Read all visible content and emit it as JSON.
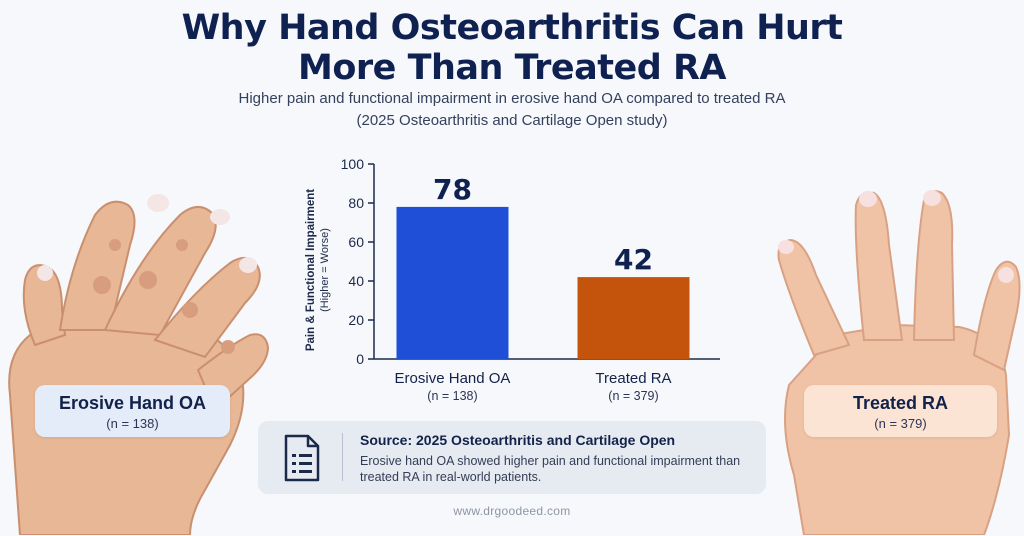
{
  "header": {
    "title_line1": "Why Hand Osteoarthritis Can Hurt",
    "title_line2": "More Than Treated RA",
    "subtitle_line1": "Higher pain and functional impairment in erosive hand OA compared to treated RA",
    "subtitle_line2": "(2025 Osteoarthritis and Cartilage Open study)"
  },
  "colors": {
    "oa_bar": "#1f4fd6",
    "ra_bar": "#c4530c",
    "title": "#0f2150",
    "oa_box": "#e3ecf8",
    "ra_box": "#fbe4d4"
  },
  "chart_data": {
    "type": "bar",
    "categories": [
      "Erosive Hand OA",
      "Treated RA"
    ],
    "category_notes": [
      "(n = 138)",
      "(n = 379)"
    ],
    "values": [
      78,
      42
    ],
    "value_labels": [
      "78",
      "42"
    ],
    "ylabel_line1": "Pain & Functional Impairment",
    "ylabel_line2": "(Higher = Worse)",
    "ylim": [
      0,
      100
    ],
    "yticks": [
      0,
      20,
      40,
      60,
      80,
      100
    ],
    "grid": false,
    "legend": "none"
  },
  "groups": {
    "left": {
      "label": "Erosive Hand OA",
      "n": "(n = 138)",
      "image_icon": "arthritic-hand-icon"
    },
    "right": {
      "label": "Treated RA",
      "n": "(n = 379)",
      "image_icon": "healthy-hand-icon"
    }
  },
  "source": {
    "icon": "document-icon",
    "title": "Source: 2025 Osteoarthritis and Cartilage Open",
    "body": "Erosive hand OA showed higher pain and functional impairment than treated RA in real-world patients."
  },
  "footer": {
    "text": "www.drgoodeed.com"
  }
}
